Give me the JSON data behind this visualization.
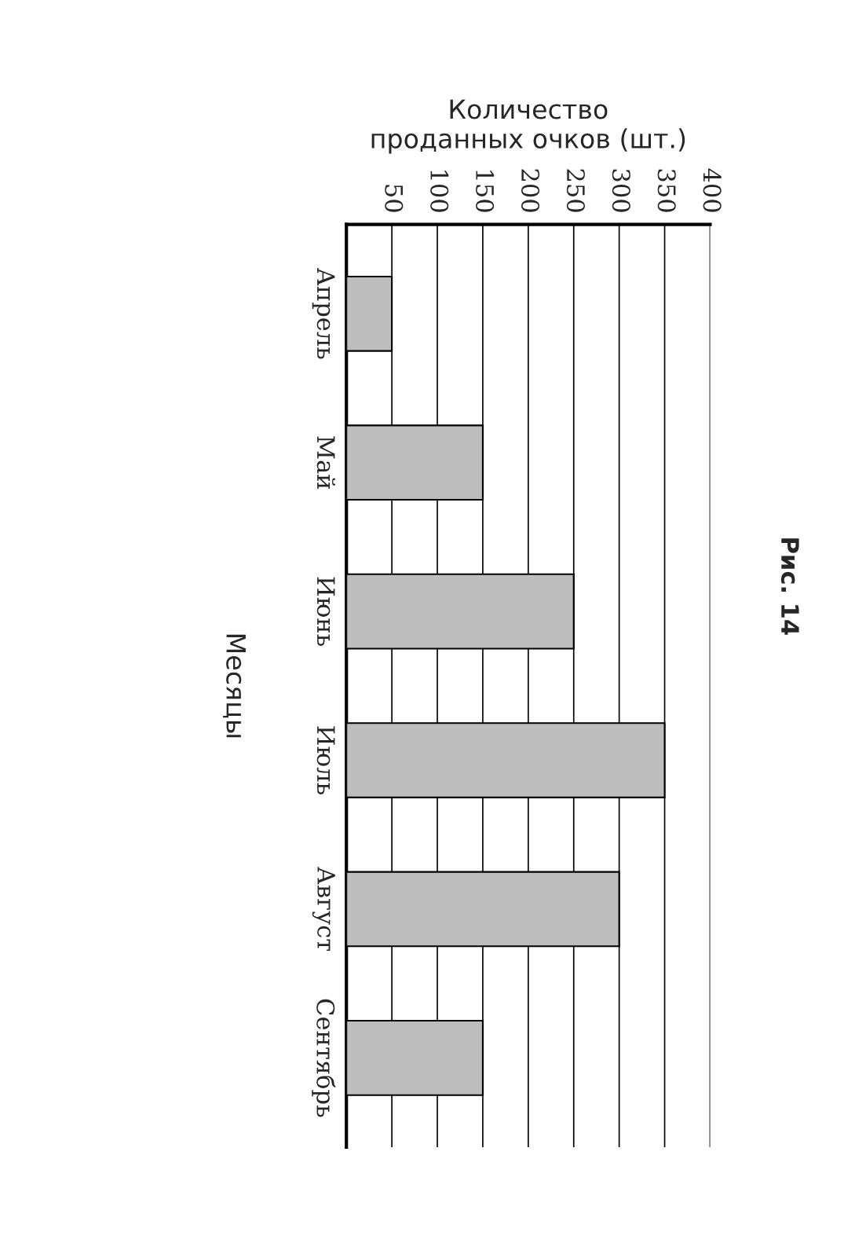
{
  "chart_data": {
    "type": "bar",
    "orientation": "horizontal",
    "xlabel": "Количество\nпроданных очков (шт.)",
    "ylabel": "Месяцы",
    "categories": [
      "Апрель",
      "Май",
      "Июнь",
      "Июль",
      "Август",
      "Сентябрь"
    ],
    "values": [
      50,
      150,
      250,
      350,
      300,
      150
    ],
    "color": "#bdbdbd",
    "xlim": [
      0,
      400
    ],
    "xticks": [
      50,
      100,
      150,
      200,
      250,
      300,
      350,
      400
    ],
    "grid": "x",
    "legend": false,
    "annotations": [
      "Рис. 14"
    ]
  }
}
